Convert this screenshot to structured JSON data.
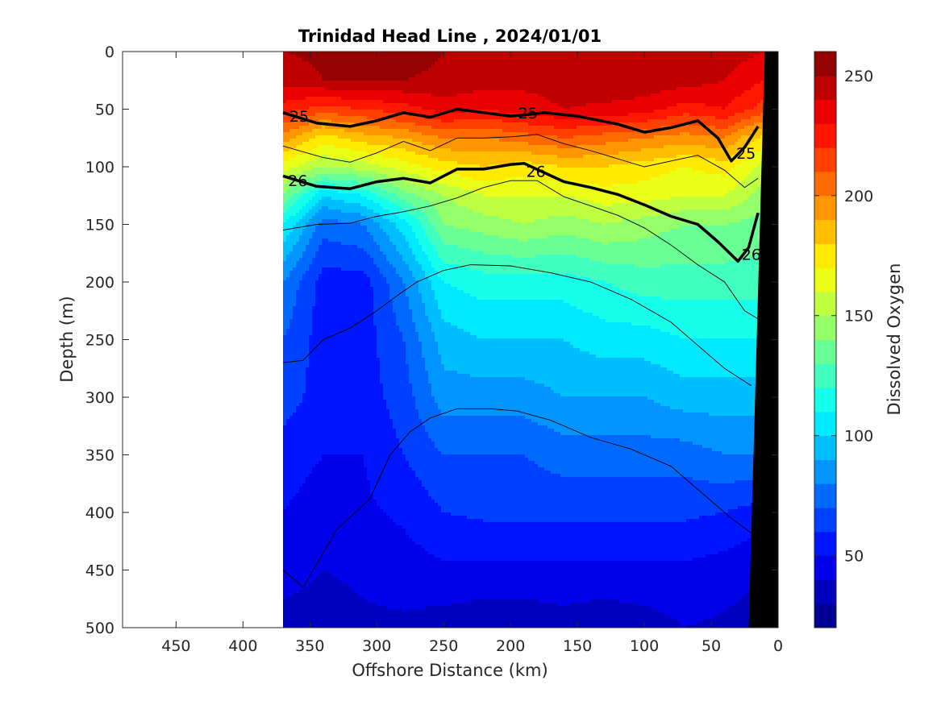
{
  "chart_data": {
    "type": "heatmap",
    "title": "Trinidad Head Line , 2024/01/01",
    "xlabel": "Offshore Distance (km)",
    "ylabel": "Depth (m)",
    "colorbar_label": "Dissolved Oxygen",
    "x_reversed": true,
    "y_reversed": true,
    "xlim": [
      490,
      0
    ],
    "ylim": [
      0,
      500
    ],
    "xticks": [
      450,
      400,
      350,
      300,
      250,
      200,
      150,
      100,
      50,
      0
    ],
    "yticks": [
      0,
      50,
      100,
      150,
      200,
      250,
      300,
      350,
      400,
      450,
      500
    ],
    "colorbar": {
      "range": [
        20,
        260
      ],
      "ticks": [
        50,
        100,
        150,
        200,
        250
      ],
      "levels": 24,
      "colormap": "jet"
    },
    "data_x_range": [
      370,
      10
    ],
    "grid_x": [
      370,
      340,
      310,
      280,
      250,
      220,
      190,
      160,
      130,
      100,
      70,
      40,
      10
    ],
    "grid_depth": [
      0,
      25,
      50,
      75,
      100,
      125,
      150,
      200,
      250,
      300,
      350,
      400,
      450,
      500
    ],
    "oxygen": [
      [
        250,
        252,
        255,
        255,
        250,
        245,
        245,
        245,
        248,
        250,
        248,
        245,
        240
      ],
      [
        245,
        250,
        252,
        250,
        248,
        245,
        243,
        245,
        247,
        247,
        245,
        240,
        230
      ],
      [
        225,
        215,
        220,
        225,
        235,
        230,
        235,
        240,
        238,
        235,
        225,
        230,
        215
      ],
      [
        195,
        175,
        185,
        190,
        200,
        200,
        205,
        210,
        205,
        200,
        195,
        200,
        175
      ],
      [
        165,
        150,
        155,
        165,
        175,
        180,
        175,
        180,
        180,
        175,
        170,
        175,
        155
      ],
      [
        140,
        100,
        110,
        135,
        150,
        160,
        160,
        160,
        165,
        165,
        160,
        160,
        145
      ],
      [
        110,
        75,
        80,
        105,
        140,
        145,
        150,
        145,
        150,
        145,
        140,
        140,
        135
      ],
      [
        80,
        55,
        55,
        80,
        110,
        115,
        115,
        115,
        120,
        125,
        125,
        125,
        125
      ],
      [
        70,
        55,
        55,
        70,
        95,
        100,
        100,
        100,
        105,
        105,
        110,
        110,
        110
      ],
      [
        65,
        55,
        55,
        65,
        85,
        85,
        85,
        90,
        90,
        90,
        95,
        95,
        95
      ],
      [
        55,
        50,
        50,
        60,
        70,
        70,
        70,
        75,
        75,
        75,
        75,
        80,
        80
      ],
      [
        50,
        45,
        48,
        52,
        60,
        62,
        62,
        62,
        62,
        62,
        62,
        60,
        55
      ],
      [
        45,
        40,
        42,
        45,
        48,
        48,
        48,
        48,
        48,
        48,
        48,
        45,
        40
      ],
      [
        35,
        35,
        38,
        38,
        35,
        32,
        32,
        35,
        32,
        35,
        40,
        38,
        35
      ]
    ],
    "bathymetry": [
      [
        10,
        0
      ],
      [
        22,
        500
      ],
      [
        0,
        500
      ],
      [
        0,
        0
      ]
    ],
    "contours_bold": [
      {
        "label": "25",
        "x": [
          370,
          345,
          320,
          300,
          280,
          260,
          240,
          220,
          200,
          190,
          175,
          150,
          120,
          100,
          80,
          60,
          45,
          35,
          25,
          15
        ],
        "y": [
          53,
          62,
          65,
          60,
          53,
          57,
          50,
          53,
          56,
          55,
          53,
          56,
          63,
          70,
          66,
          60,
          75,
          95,
          83,
          65
        ]
      },
      {
        "label": "26",
        "x": [
          370,
          345,
          320,
          300,
          280,
          260,
          240,
          220,
          200,
          190,
          160,
          140,
          120,
          100,
          80,
          60,
          45,
          30,
          22,
          15
        ],
        "y": [
          108,
          117,
          119,
          113,
          110,
          114,
          102,
          102,
          98,
          97,
          113,
          118,
          124,
          133,
          143,
          150,
          165,
          182,
          170,
          140
        ]
      }
    ],
    "contours_thin": [
      {
        "x": [
          370,
          340,
          320,
          300,
          280,
          260,
          240,
          220,
          200,
          180,
          160,
          140,
          120,
          100,
          80,
          60,
          40,
          25,
          15
        ],
        "y": [
          82,
          92,
          96,
          88,
          78,
          86,
          75,
          75,
          74,
          72,
          80,
          86,
          93,
          100,
          95,
          90,
          103,
          118,
          110
        ]
      },
      {
        "x": [
          370,
          345,
          320,
          300,
          280,
          260,
          240,
          220,
          200,
          180,
          160,
          140,
          120,
          100,
          80,
          60,
          40,
          25,
          15
        ],
        "y": [
          155,
          150,
          149,
          143,
          139,
          134,
          127,
          118,
          112,
          112,
          126,
          134,
          142,
          153,
          168,
          185,
          200,
          225,
          232
        ]
      },
      {
        "x": [
          370,
          355,
          340,
          320,
          300,
          285,
          270,
          250,
          230,
          200,
          170,
          140,
          110,
          80,
          60,
          40,
          20
        ],
        "y": [
          270,
          268,
          250,
          240,
          225,
          212,
          200,
          190,
          185,
          186,
          192,
          200,
          215,
          235,
          255,
          275,
          290
        ]
      },
      {
        "x": [
          370,
          355,
          330,
          305,
          290,
          275,
          260,
          240,
          215,
          195,
          170,
          140,
          110,
          80,
          55,
          35,
          20
        ],
        "y": [
          450,
          465,
          415,
          388,
          350,
          330,
          318,
          310,
          310,
          312,
          320,
          335,
          345,
          360,
          385,
          405,
          418
        ]
      }
    ],
    "contour_labels": [
      {
        "text": "25",
        "x": 358,
        "y": 56
      },
      {
        "text": "25",
        "x": 187,
        "y": 53
      },
      {
        "text": "25",
        "x": 24,
        "y": 88
      },
      {
        "text": "26",
        "x": 359,
        "y": 112
      },
      {
        "text": "26",
        "x": 181,
        "y": 104
      },
      {
        "text": "26",
        "x": 20,
        "y": 176
      }
    ]
  }
}
